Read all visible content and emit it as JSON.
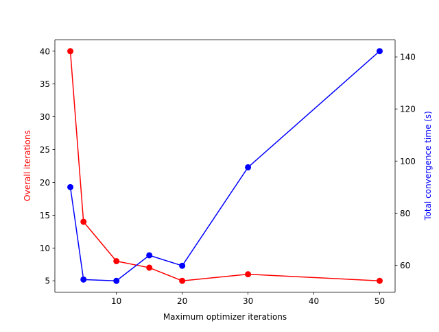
{
  "chart_data": {
    "type": "line",
    "title": "",
    "xlabel": "Maximum optimizer iterations",
    "ylabel_left": "Overall iterations",
    "ylabel_right": "Total convergence time (s)",
    "x": [
      3,
      5,
      10,
      15,
      20,
      30,
      50
    ],
    "xlim": [
      0.65,
      52.35
    ],
    "xticks": [
      10,
      20,
      30,
      40,
      50
    ],
    "ylim_left": [
      3.25,
      41.75
    ],
    "yticks_left": [
      5,
      10,
      15,
      20,
      25,
      30,
      35,
      40
    ],
    "ylim_right": [
      49.6,
      146.6
    ],
    "yticks_right": [
      60,
      80,
      100,
      120,
      140
    ],
    "grid": false,
    "series": [
      {
        "axis": "left",
        "color": "#ff0000",
        "values": [
          40,
          14,
          8,
          7,
          5,
          6,
          5
        ]
      },
      {
        "axis": "right",
        "color": "#0000ff",
        "values": [
          90,
          54.5,
          54,
          63.8,
          59.8,
          97.6,
          142.2
        ]
      }
    ]
  }
}
